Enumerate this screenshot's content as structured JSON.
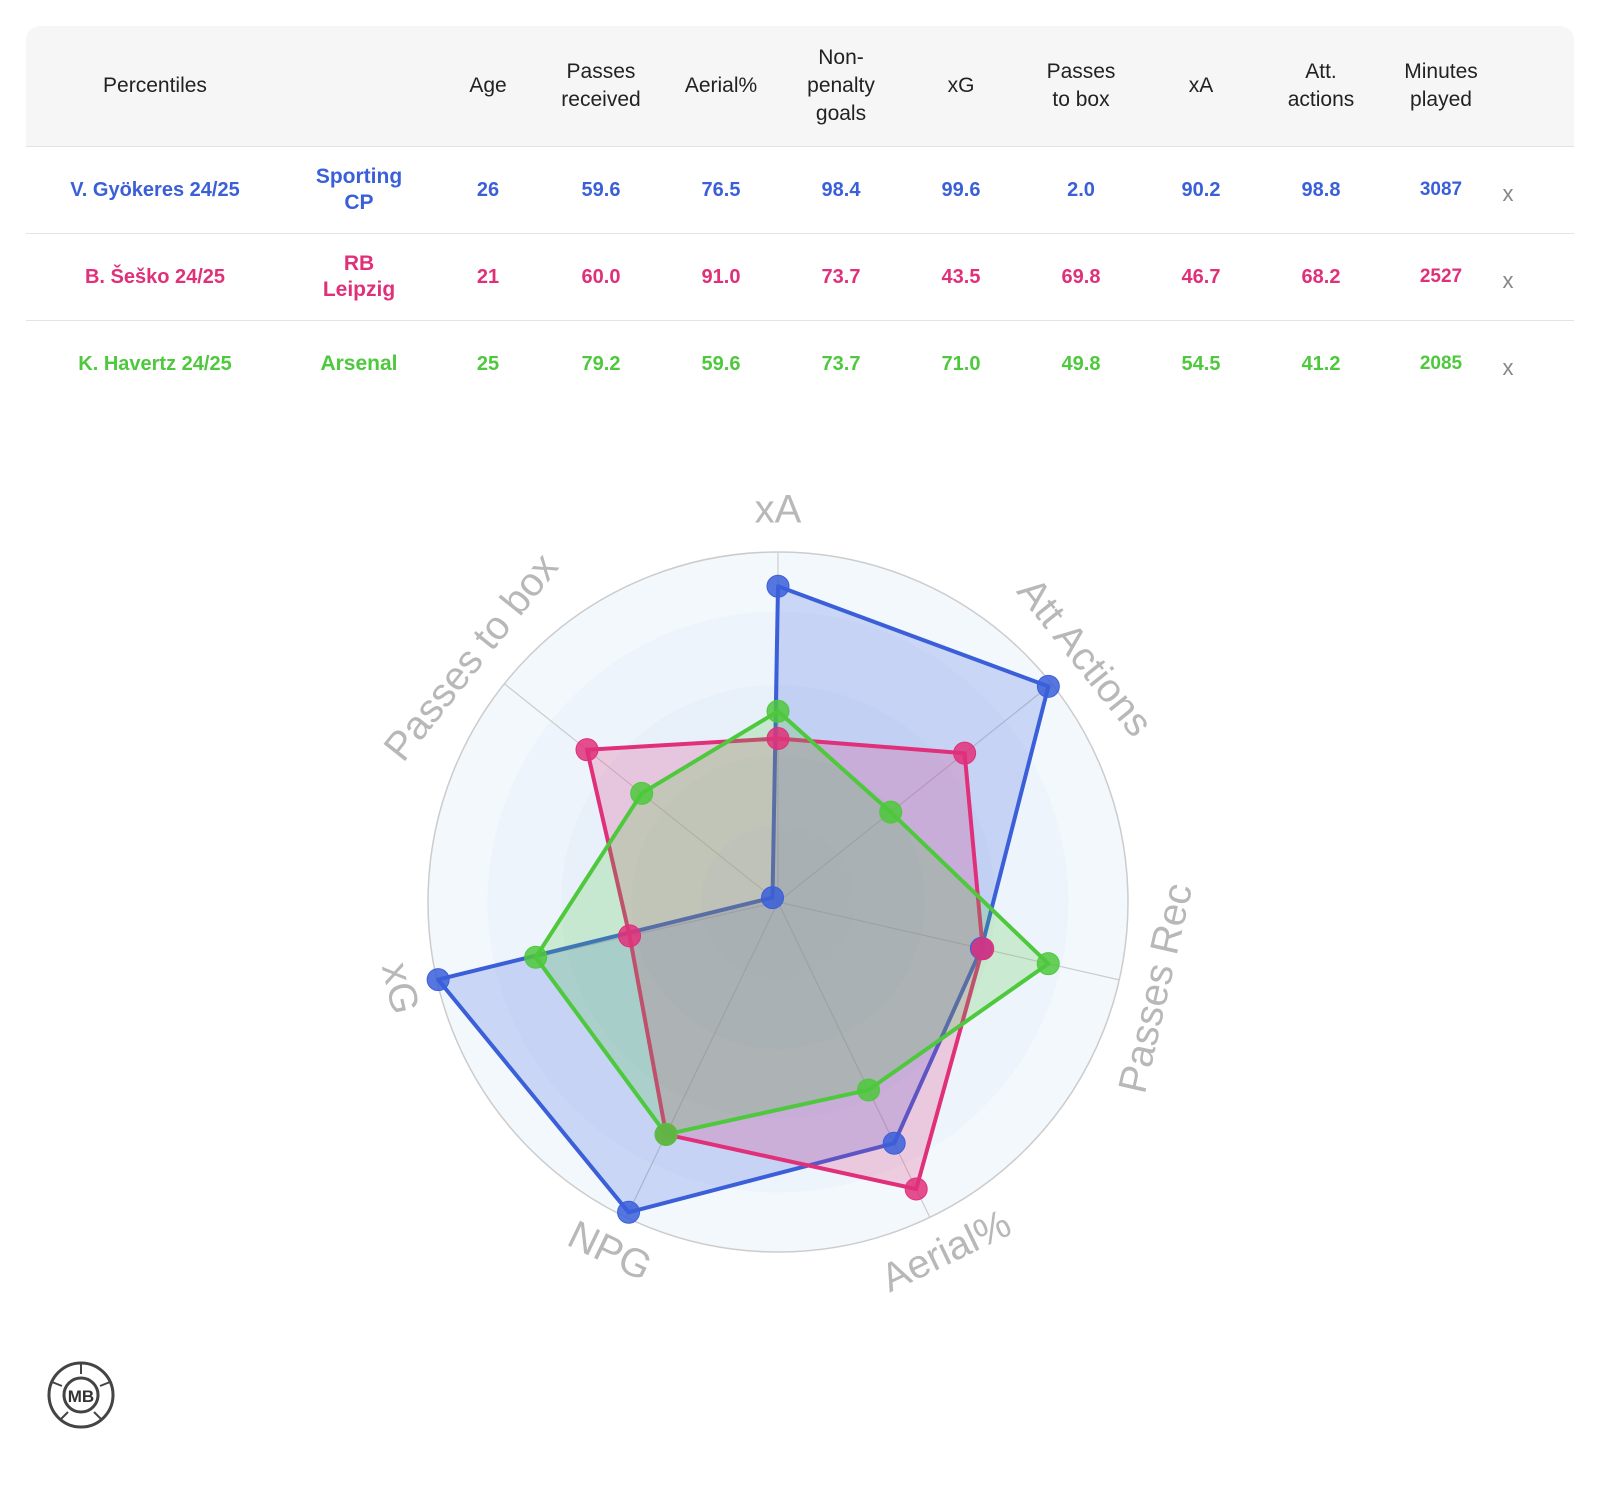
{
  "table": {
    "headers": [
      "Percentiles",
      "",
      "Age",
      "Passes\nreceived",
      "Aerial%",
      "Non-\npenalty\ngoals",
      "xG",
      "Passes\nto box",
      "xA",
      "Att.\nactions",
      "Minutes\nplayed"
    ],
    "close_label": "x",
    "rows": [
      {
        "name": "V. Gyökeres 24/25",
        "club": "Sporting\nCP",
        "age": "26",
        "passes_received": "59.6",
        "aerial": "76.5",
        "npg": "98.4",
        "xg": "99.6",
        "passes_to_box": "2.0",
        "xa": "90.2",
        "att_actions": "98.8",
        "minutes": "3087",
        "color": "#3a5fd9"
      },
      {
        "name": "B. Šeško 24/25",
        "club": "RB\nLeipzig",
        "age": "21",
        "passes_received": "60.0",
        "aerial": "91.0",
        "npg": "73.7",
        "xg": "43.5",
        "passes_to_box": "69.8",
        "xa": "46.7",
        "att_actions": "68.2",
        "minutes": "2527",
        "color": "#e0307a"
      },
      {
        "name": "K. Havertz 24/25",
        "club": "Arsenal",
        "age": "25",
        "passes_received": "79.2",
        "aerial": "59.6",
        "npg": "73.7",
        "xg": "71.0",
        "passes_to_box": "49.8",
        "xa": "54.5",
        "att_actions": "41.2",
        "minutes": "2085",
        "color": "#4ec83c"
      }
    ]
  },
  "chart_data": {
    "type": "radar",
    "axes": [
      "xA",
      "Att Actions",
      "Passes Rec",
      "Aerial%",
      "NPG",
      "xG",
      "Passes to box"
    ],
    "range": [
      0,
      100
    ],
    "series": [
      {
        "name": "V. Gyökeres 24/25",
        "color": "#3a5fd9",
        "values": [
          90.2,
          98.8,
          59.6,
          76.5,
          98.4,
          99.6,
          2.0
        ]
      },
      {
        "name": "B. Šeško 24/25",
        "color": "#e0307a",
        "values": [
          46.7,
          68.2,
          60.0,
          91.0,
          73.7,
          43.5,
          69.8
        ]
      },
      {
        "name": "K. Havertz 24/25",
        "color": "#4ec83c",
        "values": [
          54.5,
          41.2,
          79.2,
          59.6,
          73.7,
          71.0,
          49.8
        ]
      }
    ]
  },
  "logo": {
    "text": "MB"
  }
}
